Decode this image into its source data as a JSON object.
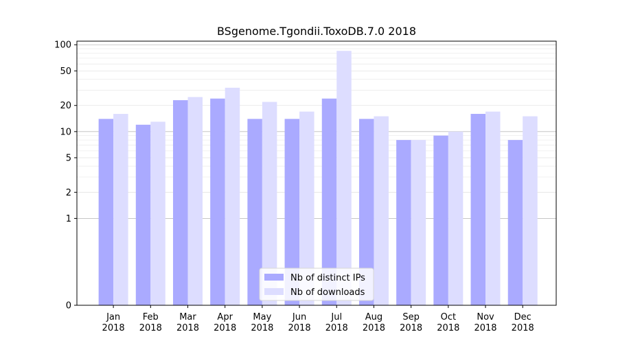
{
  "chart_data": {
    "type": "bar",
    "title": "BSgenome.Tgondii.ToxoDB.7.0 2018",
    "xlabel": "",
    "ylabel": "",
    "yscale": "symlog",
    "ylim": [
      0,
      110
    ],
    "y_ticks": [
      0,
      1,
      2,
      5,
      10,
      20,
      50,
      100
    ],
    "y_tick_labels": [
      "0",
      "1",
      "2",
      "5",
      "10",
      "20",
      "50",
      "100"
    ],
    "grid": "horizontal",
    "legend_position": "bottom-center",
    "categories": [
      [
        "Jan",
        "2018"
      ],
      [
        "Feb",
        "2018"
      ],
      [
        "Mar",
        "2018"
      ],
      [
        "Apr",
        "2018"
      ],
      [
        "May",
        "2018"
      ],
      [
        "Jun",
        "2018"
      ],
      [
        "Jul",
        "2018"
      ],
      [
        "Aug",
        "2018"
      ],
      [
        "Sep",
        "2018"
      ],
      [
        "Oct",
        "2018"
      ],
      [
        "Nov",
        "2018"
      ],
      [
        "Dec",
        "2018"
      ]
    ],
    "series": [
      {
        "name": "Nb of distinct IPs",
        "color": "#aaaaff",
        "values": [
          14,
          12,
          23,
          24,
          14,
          14,
          24,
          14,
          8,
          9,
          16,
          8
        ]
      },
      {
        "name": "Nb of downloads",
        "color": "#ddddff",
        "values": [
          16,
          13,
          25,
          32,
          22,
          17,
          85,
          15,
          8,
          10,
          17,
          15
        ]
      }
    ]
  }
}
